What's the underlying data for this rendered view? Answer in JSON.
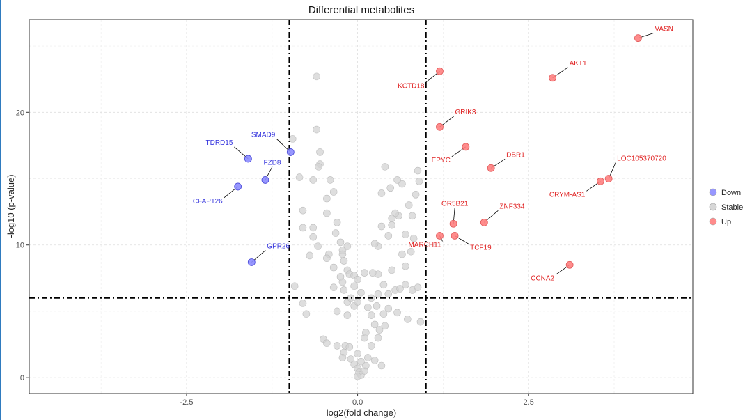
{
  "chart_data": {
    "type": "scatter",
    "title": "Differential metabolites",
    "xlabel": "log2(fold change)",
    "ylabel": "-log10 (p-value)",
    "xlim": [
      -4.8,
      4.9
    ],
    "ylim": [
      -1.2,
      27
    ],
    "x_ticks": [
      -2.5,
      0.0,
      2.5
    ],
    "x_tick_labels": [
      "-2.5",
      "0.0",
      "2.5"
    ],
    "y_ticks": [
      0,
      10,
      20
    ],
    "y_tick_labels": [
      "0",
      "10",
      "20"
    ],
    "grid": true,
    "thresholds": {
      "x": [
        -1,
        1
      ],
      "y": 6
    },
    "legend": {
      "position": "right",
      "entries": [
        {
          "name": "Down",
          "color": "#8c8cff"
        },
        {
          "name": "Stable",
          "color": "#d3d3d3"
        },
        {
          "name": "Up",
          "color": "#ff8080"
        }
      ]
    },
    "colors": {
      "Down": "#8c8cff",
      "Stable": "#d3d3d3",
      "Up": "#ff8080",
      "Down_stroke": "#4a4ad8",
      "Up_stroke": "#e05a5a",
      "Stable_stroke": "#bdbdbd",
      "Down_text": "#3333dd",
      "Up_text": "#e02020"
    },
    "series": [
      {
        "name": "Down",
        "points": [
          {
            "x": -1.75,
            "y": 14.4,
            "label": "CFAP126"
          },
          {
            "x": -1.6,
            "y": 16.5,
            "label": "TDRD15"
          },
          {
            "x": -1.35,
            "y": 14.9,
            "label": "FZD8"
          },
          {
            "x": -0.98,
            "y": 17.0,
            "label": "SMAD9"
          },
          {
            "x": -1.55,
            "y": 8.7,
            "label": "GPR26"
          }
        ]
      },
      {
        "name": "Up",
        "points": [
          {
            "x": 4.1,
            "y": 25.6,
            "label": "VASN"
          },
          {
            "x": 2.85,
            "y": 22.6,
            "label": "AKT1"
          },
          {
            "x": 1.2,
            "y": 23.1,
            "label": "KCTD18"
          },
          {
            "x": 1.2,
            "y": 18.9,
            "label": "GRIK3"
          },
          {
            "x": 1.58,
            "y": 17.4,
            "label": "EPYC"
          },
          {
            "x": 1.95,
            "y": 15.8,
            "label": "DBR1"
          },
          {
            "x": 3.55,
            "y": 14.8,
            "label": "CRYM-AS1"
          },
          {
            "x": 3.67,
            "y": 15.0,
            "label": "LOC105370720"
          },
          {
            "x": 1.4,
            "y": 11.6,
            "label": "OR5B21"
          },
          {
            "x": 1.85,
            "y": 11.7,
            "label": "ZNF334"
          },
          {
            "x": 1.2,
            "y": 10.7,
            "label": "MARCH11"
          },
          {
            "x": 1.42,
            "y": 10.7,
            "label": "TCF19"
          },
          {
            "x": 3.1,
            "y": 8.5,
            "label": "CCNA2"
          }
        ]
      },
      {
        "name": "Stable",
        "points": [
          [
            -0.6,
            22.7
          ],
          [
            -0.6,
            18.7
          ],
          [
            -0.95,
            18.0
          ],
          [
            -0.55,
            17.0
          ],
          [
            -0.55,
            16.1
          ],
          [
            -0.57,
            15.9
          ],
          [
            -0.85,
            15.1
          ],
          [
            -0.65,
            14.9
          ],
          [
            -0.4,
            14.9
          ],
          [
            -0.35,
            14.0
          ],
          [
            -0.45,
            13.5
          ],
          [
            -0.45,
            12.4
          ],
          [
            -0.3,
            11.7
          ],
          [
            -0.8,
            12.6
          ],
          [
            -0.65,
            11.3
          ],
          [
            -0.8,
            11.3
          ],
          [
            -0.65,
            10.6
          ],
          [
            -0.58,
            9.9
          ],
          [
            -0.32,
            10.9
          ],
          [
            -0.25,
            10.2
          ],
          [
            -0.15,
            9.9
          ],
          [
            -0.22,
            9.6
          ],
          [
            -0.22,
            9.3
          ],
          [
            -0.42,
            9.3
          ],
          [
            -0.7,
            9.2
          ],
          [
            -0.45,
            9.0
          ],
          [
            -0.2,
            8.8
          ],
          [
            -0.35,
            8.3
          ],
          [
            -0.15,
            8.1
          ],
          [
            -0.12,
            7.8
          ],
          [
            -0.25,
            7.6
          ],
          [
            -0.05,
            7.7
          ],
          [
            -0.22,
            7.2
          ],
          [
            -0.35,
            6.8
          ],
          [
            -0.2,
            6.6
          ],
          [
            -0.15,
            5.7
          ],
          [
            -0.05,
            5.4
          ],
          [
            -0.3,
            5.0
          ],
          [
            -0.15,
            4.7
          ],
          [
            -0.8,
            5.6
          ],
          [
            -0.92,
            6.9
          ],
          [
            -0.75,
            4.8
          ],
          [
            -0.5,
            2.9
          ],
          [
            -0.45,
            2.6
          ],
          [
            -0.3,
            2.4
          ],
          [
            -0.18,
            2.4
          ],
          [
            -0.12,
            2.3
          ],
          [
            -0.2,
            1.9
          ],
          [
            -0.22,
            1.5
          ],
          [
            -0.1,
            1.4
          ],
          [
            -0.05,
            1.0
          ],
          [
            0.0,
            0.7
          ],
          [
            0.02,
            0.4
          ],
          [
            0.05,
            0.2
          ],
          [
            0.0,
            0.1
          ],
          [
            0.1,
            0.5
          ],
          [
            0.12,
            0.9
          ],
          [
            0.05,
            1.2
          ],
          [
            0.15,
            1.5
          ],
          [
            0.0,
            1.8
          ],
          [
            0.35,
            0.9
          ],
          [
            0.25,
            1.3
          ],
          [
            0.2,
            2.4
          ],
          [
            0.1,
            3.0
          ],
          [
            0.3,
            3.0
          ],
          [
            0.12,
            3.4
          ],
          [
            0.32,
            3.6
          ],
          [
            0.25,
            4.0
          ],
          [
            0.4,
            3.9
          ],
          [
            0.2,
            4.7
          ],
          [
            0.38,
            4.8
          ],
          [
            0.15,
            5.3
          ],
          [
            0.28,
            5.4
          ],
          [
            0.45,
            5.2
          ],
          [
            0.2,
            6.0
          ],
          [
            0.3,
            6.3
          ],
          [
            0.45,
            6.3
          ],
          [
            0.55,
            6.6
          ],
          [
            0.62,
            6.7
          ],
          [
            0.8,
            6.6
          ],
          [
            0.88,
            6.8
          ],
          [
            0.7,
            7.0
          ],
          [
            0.92,
            4.2
          ],
          [
            0.73,
            4.4
          ],
          [
            0.58,
            4.9
          ],
          [
            0.38,
            7.0
          ],
          [
            0.3,
            7.8
          ],
          [
            0.22,
            7.9
          ],
          [
            0.5,
            8.1
          ],
          [
            0.7,
            8.4
          ],
          [
            0.65,
            9.3
          ],
          [
            0.78,
            9.5
          ],
          [
            0.82,
            10.5
          ],
          [
            0.7,
            10.8
          ],
          [
            0.3,
            9.9
          ],
          [
            0.25,
            10.1
          ],
          [
            0.45,
            10.7
          ],
          [
            0.35,
            11.4
          ],
          [
            0.5,
            11.5
          ],
          [
            0.6,
            12.2
          ],
          [
            0.55,
            12.4
          ],
          [
            0.8,
            12.2
          ],
          [
            0.5,
            12.0
          ],
          [
            0.75,
            13.0
          ],
          [
            0.85,
            13.8
          ],
          [
            0.65,
            14.6
          ],
          [
            0.48,
            14.3
          ],
          [
            0.35,
            13.9
          ],
          [
            0.58,
            14.9
          ],
          [
            0.9,
            14.8
          ],
          [
            0.88,
            15.6
          ],
          [
            0.4,
            15.9
          ],
          [
            0.1,
            7.9
          ],
          [
            0.0,
            7.4
          ],
          [
            -0.05,
            6.9
          ],
          [
            0.05,
            6.4
          ],
          [
            -0.1,
            6.0
          ],
          [
            0.0,
            5.7
          ]
        ]
      }
    ]
  }
}
